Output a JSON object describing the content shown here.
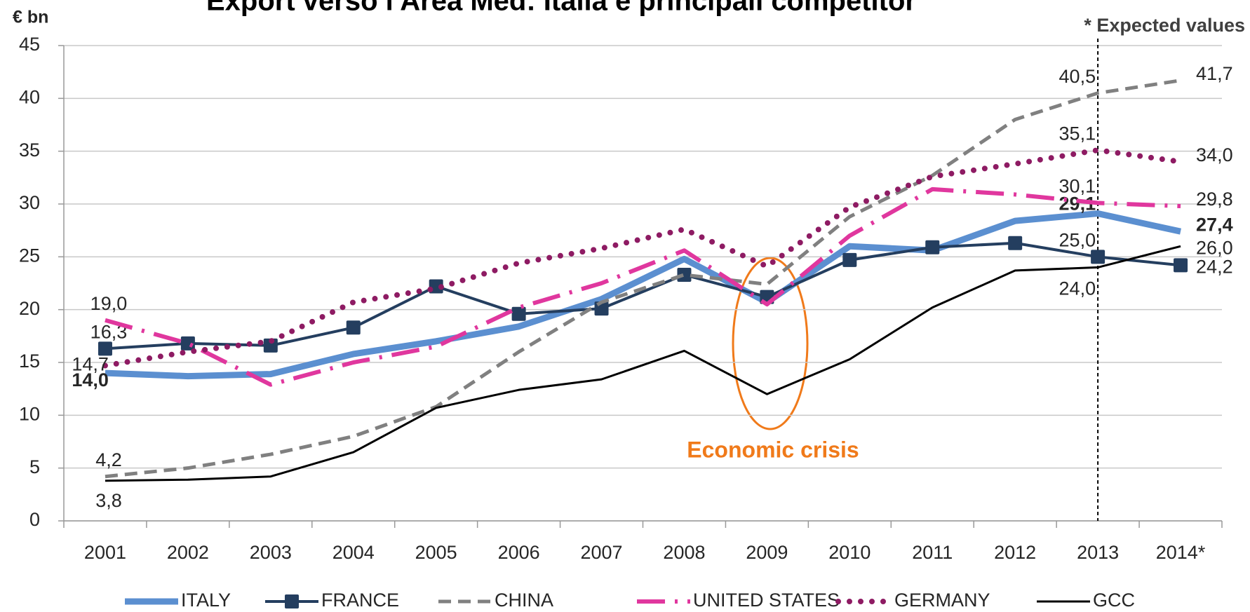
{
  "chart_data": {
    "type": "line",
    "title": "Export verso l'Area Med: Italia e principali competitor",
    "y_label": "€ bn",
    "annotations": [
      "* Expected values",
      "Economic crisis"
    ],
    "categories": [
      "2001",
      "2002",
      "2003",
      "2004",
      "2005",
      "2006",
      "2007",
      "2008",
      "2009",
      "2010",
      "2011",
      "2012",
      "2013",
      "2014*"
    ],
    "series": [
      {
        "name": "ITALY",
        "color": "#5b8fd0",
        "values": [
          14.0,
          13.7,
          13.9,
          15.8,
          17.0,
          18.4,
          21.0,
          24.8,
          20.7,
          26.0,
          25.6,
          28.4,
          29.1,
          27.4
        ],
        "value_labels": [
          "14,0",
          null,
          null,
          null,
          null,
          null,
          null,
          null,
          null,
          null,
          null,
          null,
          "29,1",
          "27,4"
        ]
      },
      {
        "name": "FRANCE",
        "color": "#243e5f",
        "values": [
          16.3,
          16.8,
          16.6,
          18.3,
          22.2,
          19.6,
          20.1,
          23.3,
          21.2,
          24.7,
          25.9,
          26.3,
          25.0,
          24.2
        ],
        "value_labels": [
          "16,3",
          null,
          null,
          null,
          null,
          null,
          null,
          null,
          null,
          null,
          null,
          null,
          "25,0",
          "24,2"
        ]
      },
      {
        "name": "CHINA",
        "color": "#808080",
        "values": [
          4.2,
          5.0,
          6.3,
          8.0,
          10.8,
          16.0,
          20.7,
          23.3,
          22.4,
          28.8,
          32.7,
          38.0,
          40.5,
          41.7
        ],
        "value_labels": [
          "4,2",
          null,
          null,
          null,
          null,
          null,
          null,
          null,
          null,
          null,
          null,
          null,
          "40,5",
          "41,7"
        ]
      },
      {
        "name": "UNITED STATES",
        "color": "#e0379e",
        "values": [
          19.0,
          16.8,
          12.9,
          15.0,
          16.5,
          20.2,
          22.5,
          25.6,
          20.5,
          27.0,
          31.4,
          30.9,
          30.1,
          29.8
        ],
        "value_labels": [
          "19,0",
          null,
          null,
          null,
          null,
          null,
          null,
          null,
          null,
          null,
          null,
          null,
          "30,1",
          "29,8"
        ]
      },
      {
        "name": "GERMANY",
        "color": "#8e1b63",
        "values": [
          14.7,
          16.0,
          17.0,
          20.7,
          22.0,
          24.4,
          25.8,
          27.6,
          24.1,
          29.7,
          32.6,
          33.8,
          35.1,
          34.0
        ],
        "value_labels": [
          "14,7",
          null,
          null,
          null,
          null,
          null,
          null,
          null,
          null,
          null,
          null,
          null,
          "35,1",
          "34,0"
        ]
      },
      {
        "name": "GCC",
        "color": "#000000",
        "values": [
          3.8,
          3.9,
          4.2,
          6.5,
          10.7,
          12.4,
          13.4,
          16.1,
          12.0,
          15.3,
          20.2,
          23.7,
          24.0,
          26.0
        ],
        "value_labels": [
          "3,8",
          null,
          null,
          null,
          null,
          null,
          null,
          null,
          null,
          null,
          null,
          null,
          "24,0",
          "26,0"
        ]
      }
    ],
    "ylim": [
      0,
      45
    ],
    "yticks": [
      0,
      5,
      10,
      15,
      20,
      25,
      30,
      35,
      40,
      45
    ],
    "grid": true
  }
}
